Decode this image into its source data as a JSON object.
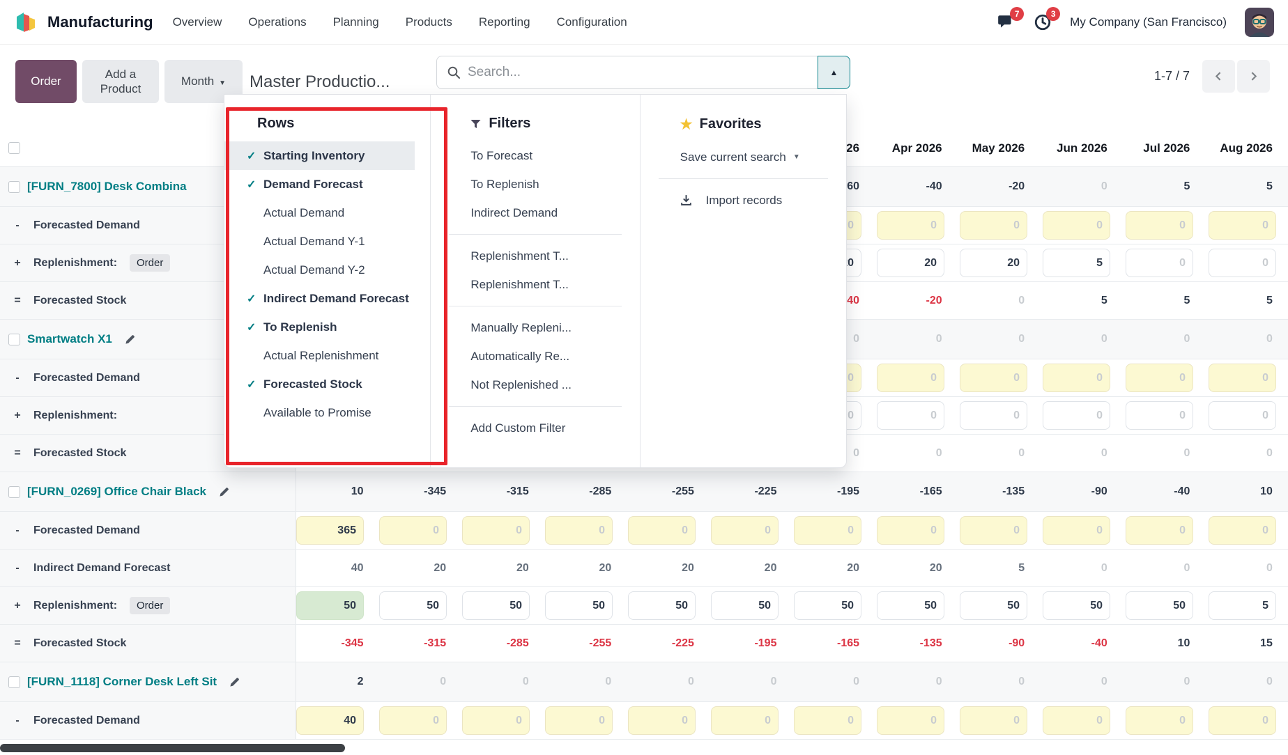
{
  "nav": {
    "app_name": "Manufacturing",
    "menus": [
      "Overview",
      "Operations",
      "Planning",
      "Products",
      "Reporting",
      "Configuration"
    ],
    "messages_count": "7",
    "activities_count": "3",
    "company": "My Company (San Francisco)"
  },
  "control_panel": {
    "order_button": "Order",
    "add_product_button": "Add a Product",
    "period_button": "Month",
    "title": "Master Productio...",
    "search_placeholder": "Search...",
    "pager": "1-7 / 7"
  },
  "search_dropdown": {
    "rows": {
      "title": "Rows",
      "items": [
        {
          "label": "Starting Inventory",
          "checked": true,
          "highlighted": true
        },
        {
          "label": "Demand Forecast",
          "checked": true,
          "highlighted": false
        },
        {
          "label": "Actual Demand",
          "checked": false,
          "highlighted": false
        },
        {
          "label": "Actual Demand Y-1",
          "checked": false,
          "highlighted": false
        },
        {
          "label": "Actual Demand Y-2",
          "checked": false,
          "highlighted": false
        },
        {
          "label": "Indirect Demand Forecast",
          "checked": true,
          "highlighted": false
        },
        {
          "label": "To Replenish",
          "checked": true,
          "highlighted": false
        },
        {
          "label": "Actual Replenishment",
          "checked": false,
          "highlighted": false
        },
        {
          "label": "Forecasted Stock",
          "checked": true,
          "highlighted": false
        },
        {
          "label": "Available to Promise",
          "checked": false,
          "highlighted": false
        }
      ]
    },
    "filters": {
      "title": "Filters",
      "groups": [
        [
          "To Forecast",
          "To Replenish",
          "Indirect Demand"
        ],
        [
          "Replenishment T...",
          "Replenishment T..."
        ],
        [
          "Manually Repleni...",
          "Automatically Re...",
          "Not Replenished ..."
        ],
        [
          "Add Custom Filter"
        ]
      ]
    },
    "favorites": {
      "title": "Favorites",
      "save_label": "Save current search",
      "import_label": "Import records"
    }
  },
  "table": {
    "month_headers": [
      "",
      "",
      "",
      "",
      "",
      "",
      "26",
      "Apr 2026",
      "May 2026",
      "Jun 2026",
      "Jul 2026",
      "Aug 2026"
    ],
    "products": [
      {
        "name": "[FURN_7800] Desk Combina",
        "pencil": false,
        "start_values": [
          "",
          "",
          "",
          "",
          "",
          "",
          "-60",
          "-40",
          "-20",
          "0",
          "5",
          "5"
        ],
        "sub_rows": [
          {
            "op": "-",
            "label": "Forecasted Demand",
            "badge": "",
            "type": "yellow",
            "green_cols": [],
            "values": [
              "",
              "",
              "",
              "",
              "",
              "",
              "0",
              "0",
              "0",
              "0",
              "0",
              "0"
            ]
          },
          {
            "op": "+",
            "label": "Replenishment:",
            "badge": "Order",
            "type": "white",
            "green_cols": [],
            "values": [
              "",
              "",
              "",
              "",
              "",
              "",
              "20",
              "20",
              "20",
              "5",
              "0",
              "0"
            ]
          },
          {
            "op": "=",
            "label": "Forecasted Stock",
            "badge": "",
            "type": "stock",
            "green_cols": [],
            "values": [
              "",
              "",
              "",
              "",
              "",
              "",
              "-40",
              "-20",
              "0",
              "5",
              "5",
              "5"
            ]
          }
        ]
      },
      {
        "name": "Smartwatch X1",
        "pencil": true,
        "start_values": [
          "",
          "",
          "",
          "",
          "",
          "",
          "0",
          "0",
          "0",
          "0",
          "0",
          "0"
        ],
        "sub_rows": [
          {
            "op": "-",
            "label": "Forecasted Demand",
            "badge": "",
            "type": "yellow",
            "green_cols": [],
            "values": [
              "",
              "",
              "",
              "",
              "",
              "",
              "0",
              "0",
              "0",
              "0",
              "0",
              "0"
            ]
          },
          {
            "op": "+",
            "label": "Replenishment:",
            "badge": "",
            "type": "white",
            "green_cols": [],
            "values": [
              "",
              "",
              "",
              "",
              "",
              "",
              "0",
              "0",
              "0",
              "0",
              "0",
              "0"
            ]
          },
          {
            "op": "=",
            "label": "Forecasted Stock",
            "badge": "",
            "type": "stock",
            "green_cols": [],
            "values": [
              "",
              "",
              "",
              "",
              "",
              "",
              "0",
              "0",
              "0",
              "0",
              "0",
              "0"
            ]
          }
        ]
      },
      {
        "name": "[FURN_0269] Office Chair Black",
        "pencil": true,
        "start_values": [
          "10",
          "-345",
          "-315",
          "-285",
          "-255",
          "-225",
          "-195",
          "-165",
          "-135",
          "-90",
          "-40",
          "10"
        ],
        "sub_rows": [
          {
            "op": "-",
            "label": "Forecasted Demand",
            "badge": "",
            "type": "yellow",
            "green_cols": [],
            "values": [
              "365",
              "0",
              "0",
              "0",
              "0",
              "0",
              "0",
              "0",
              "0",
              "0",
              "0",
              "0"
            ]
          },
          {
            "op": "-",
            "label": "Indirect Demand Forecast",
            "badge": "",
            "type": "muted",
            "green_cols": [],
            "values": [
              "40",
              "20",
              "20",
              "20",
              "20",
              "20",
              "20",
              "20",
              "5",
              "0",
              "0",
              "0"
            ]
          },
          {
            "op": "+",
            "label": "Replenishment:",
            "badge": "Order",
            "type": "white",
            "green_cols": [
              0
            ],
            "values": [
              "50",
              "50",
              "50",
              "50",
              "50",
              "50",
              "50",
              "50",
              "50",
              "50",
              "50",
              "5"
            ]
          },
          {
            "op": "=",
            "label": "Forecasted Stock",
            "badge": "",
            "type": "stock",
            "green_cols": [],
            "values": [
              "-345",
              "-315",
              "-285",
              "-255",
              "-225",
              "-195",
              "-165",
              "-135",
              "-90",
              "-40",
              "10",
              "15"
            ]
          }
        ]
      },
      {
        "name": "[FURN_1118] Corner Desk Left Sit",
        "pencil": true,
        "start_values": [
          "2",
          "0",
          "0",
          "0",
          "0",
          "0",
          "0",
          "0",
          "0",
          "0",
          "0",
          "0"
        ],
        "sub_rows": [
          {
            "op": "-",
            "label": "Forecasted Demand",
            "badge": "",
            "type": "yellow",
            "green_cols": [],
            "values": [
              "40",
              "0",
              "0",
              "0",
              "0",
              "0",
              "0",
              "0",
              "0",
              "0",
              "0",
              "0"
            ]
          }
        ]
      }
    ]
  }
}
